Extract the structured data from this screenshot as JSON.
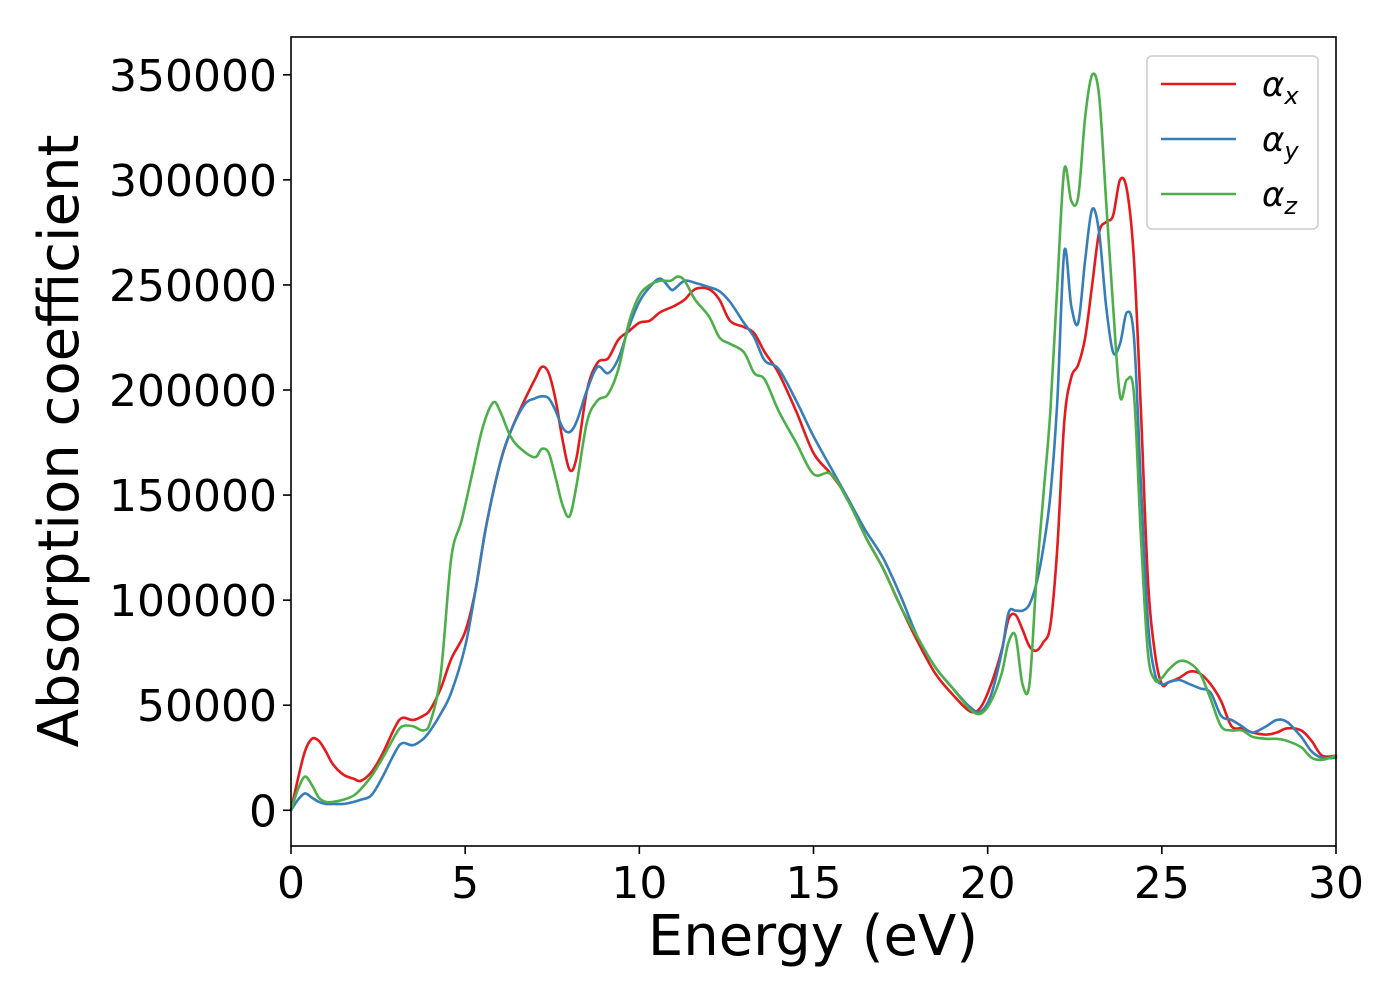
{
  "chart_data": {
    "type": "line",
    "xlabel": "Energy (eV)",
    "ylabel": "Absorption coefficient",
    "xlim": [
      0,
      30
    ],
    "ylim": [
      -17000,
      368000
    ],
    "xticks": [
      0,
      5,
      10,
      15,
      20,
      25,
      30
    ],
    "xtick_labels": [
      "0",
      "5",
      "10",
      "15",
      "20",
      "25",
      "30"
    ],
    "yticks": [
      0,
      50000,
      100000,
      150000,
      200000,
      250000,
      300000,
      350000
    ],
    "ytick_labels": [
      "0",
      "50000",
      "100000",
      "150000",
      "200000",
      "250000",
      "300000",
      "350000"
    ],
    "grid": false,
    "legend_position": "top-right",
    "series": [
      {
        "name": "α",
        "subscript": "x",
        "color": "#e41a1c",
        "x": [
          0,
          0.2,
          0.4,
          0.6,
          0.8,
          1.0,
          1.2,
          1.5,
          1.8,
          2.0,
          2.3,
          2.6,
          3.0,
          3.2,
          3.5,
          3.8,
          4.0,
          4.3,
          4.6,
          5.0,
          5.3,
          5.6,
          6.0,
          6.3,
          6.7,
          7.0,
          7.2,
          7.4,
          7.6,
          7.8,
          8.0,
          8.2,
          8.5,
          8.8,
          9.1,
          9.4,
          9.7,
          10.0,
          10.3,
          10.6,
          11.0,
          11.3,
          11.6,
          12.0,
          12.3,
          12.6,
          13.0,
          13.3,
          13.6,
          14.0,
          14.5,
          15.0,
          15.5,
          16.0,
          16.5,
          17.0,
          17.5,
          18.0,
          18.5,
          19.0,
          19.5,
          19.8,
          20.1,
          20.4,
          20.6,
          20.8,
          21.0,
          21.2,
          21.4,
          21.6,
          21.8,
          22.0,
          22.2,
          22.4,
          22.6,
          22.8,
          23.0,
          23.2,
          23.4,
          23.6,
          23.8,
          24.0,
          24.2,
          24.4,
          24.6,
          24.8,
          25.0,
          25.2,
          25.5,
          25.8,
          26.1,
          26.4,
          26.7,
          27.0,
          27.3,
          27.6,
          28.0,
          28.3,
          28.6,
          29.0,
          29.3,
          29.6,
          30.0
        ],
        "y": [
          0,
          15000,
          28000,
          34000,
          33000,
          28000,
          22000,
          17000,
          15000,
          14000,
          18000,
          26000,
          40000,
          44000,
          43000,
          45000,
          48000,
          58000,
          72000,
          85000,
          105000,
          135000,
          165000,
          180000,
          195000,
          205000,
          211000,
          208000,
          195000,
          176000,
          162000,
          168000,
          200000,
          213000,
          215000,
          224000,
          228000,
          232000,
          233000,
          237000,
          240000,
          243000,
          248000,
          248000,
          243000,
          233000,
          230000,
          227000,
          218000,
          208000,
          190000,
          170000,
          160000,
          148000,
          130000,
          115000,
          97000,
          80000,
          65000,
          55000,
          47000,
          49000,
          60000,
          76000,
          91000,
          93000,
          86000,
          78000,
          76000,
          80000,
          88000,
          125000,
          185000,
          206000,
          212000,
          225000,
          250000,
          275000,
          280000,
          283000,
          300000,
          295000,
          262000,
          190000,
          110000,
          75000,
          60000,
          61000,
          63000,
          66000,
          65000,
          60000,
          52000,
          40000,
          39000,
          37000,
          36000,
          37000,
          39000,
          38000,
          33000,
          26000,
          26000
        ],
        "x_label_unit": "eV"
      },
      {
        "name": "α",
        "subscript": "y",
        "color": "#377eb8",
        "x": [
          0,
          0.2,
          0.4,
          0.6,
          0.8,
          1.0,
          1.2,
          1.5,
          1.8,
          2.0,
          2.3,
          2.6,
          3.0,
          3.2,
          3.5,
          3.8,
          4.0,
          4.3,
          4.6,
          5.0,
          5.3,
          5.6,
          6.0,
          6.3,
          6.7,
          7.0,
          7.2,
          7.4,
          7.6,
          7.8,
          8.0,
          8.2,
          8.5,
          8.8,
          9.1,
          9.4,
          9.7,
          10.0,
          10.3,
          10.6,
          10.9,
          11.0,
          11.3,
          11.6,
          12.0,
          12.3,
          12.6,
          13.0,
          13.3,
          13.6,
          14.0,
          14.5,
          15.0,
          15.5,
          16.0,
          16.5,
          17.0,
          17.5,
          18.0,
          18.5,
          19.0,
          19.5,
          19.8,
          20.1,
          20.4,
          20.6,
          20.8,
          21.0,
          21.2,
          21.4,
          21.6,
          21.8,
          22.0,
          22.2,
          22.4,
          22.6,
          22.8,
          23.0,
          23.2,
          23.4,
          23.6,
          23.8,
          24.0,
          24.2,
          24.4,
          24.6,
          24.8,
          25.0,
          25.2,
          25.5,
          25.8,
          26.1,
          26.4,
          26.7,
          27.0,
          27.3,
          27.6,
          28.0,
          28.3,
          28.6,
          29.0,
          29.3,
          29.6,
          30.0
        ],
        "y": [
          0,
          5000,
          8000,
          6000,
          4000,
          3000,
          3000,
          3000,
          4000,
          5000,
          7000,
          15000,
          28000,
          32000,
          31000,
          34000,
          38000,
          46000,
          56000,
          78000,
          105000,
          135000,
          165000,
          180000,
          193000,
          196000,
          197000,
          196000,
          190000,
          182000,
          180000,
          185000,
          200000,
          211000,
          208000,
          215000,
          230000,
          242000,
          249000,
          253000,
          248000,
          248000,
          252000,
          251000,
          249000,
          247000,
          242000,
          232000,
          225000,
          214000,
          210000,
          195000,
          178000,
          163000,
          148000,
          133000,
          120000,
          102000,
          82000,
          68000,
          58000,
          49000,
          47000,
          55000,
          75000,
          94000,
          95000,
          95000,
          98000,
          108000,
          125000,
          150000,
          195000,
          266000,
          240000,
          232000,
          262000,
          286000,
          275000,
          240000,
          218000,
          222000,
          237000,
          225000,
          155000,
          90000,
          65000,
          60000,
          61000,
          62000,
          60000,
          58000,
          56000,
          45000,
          43000,
          40000,
          37000,
          40000,
          43000,
          42000,
          35000,
          28000,
          25000,
          25000
        ]
      },
      {
        "name": "α",
        "subscript": "z",
        "color": "#4daf4a",
        "x": [
          0,
          0.2,
          0.4,
          0.6,
          0.8,
          1.0,
          1.2,
          1.5,
          1.8,
          2.0,
          2.3,
          2.6,
          3.0,
          3.2,
          3.5,
          3.8,
          4.0,
          4.3,
          4.6,
          4.9,
          5.2,
          5.5,
          5.8,
          6.0,
          6.3,
          6.6,
          7.0,
          7.2,
          7.4,
          7.6,
          7.8,
          8.0,
          8.2,
          8.5,
          8.8,
          9.1,
          9.4,
          9.7,
          10.0,
          10.3,
          10.6,
          10.9,
          11.1,
          11.3,
          11.6,
          12.0,
          12.3,
          12.6,
          13.0,
          13.3,
          13.6,
          14.0,
          14.5,
          15.0,
          15.5,
          16.0,
          16.5,
          17.0,
          17.5,
          18.0,
          18.5,
          19.0,
          19.5,
          19.8,
          20.1,
          20.4,
          20.6,
          20.8,
          21.0,
          21.2,
          21.4,
          21.6,
          21.8,
          22.0,
          22.2,
          22.4,
          22.6,
          22.8,
          23.0,
          23.2,
          23.4,
          23.6,
          23.8,
          24.0,
          24.2,
          24.4,
          24.6,
          24.8,
          25.0,
          25.2,
          25.5,
          25.8,
          26.1,
          26.4,
          26.7,
          27.0,
          27.3,
          27.6,
          28.0,
          28.3,
          28.6,
          29.0,
          29.3,
          29.6,
          30.0
        ],
        "y": [
          0,
          10000,
          16000,
          12000,
          6000,
          4000,
          4000,
          5000,
          7000,
          10000,
          16000,
          24000,
          36000,
          40000,
          40000,
          38000,
          42000,
          65000,
          120000,
          138000,
          160000,
          182000,
          194000,
          190000,
          178000,
          172000,
          168000,
          172000,
          170000,
          158000,
          145000,
          140000,
          155000,
          185000,
          195000,
          198000,
          210000,
          232000,
          245000,
          250000,
          252000,
          252000,
          254000,
          252000,
          243000,
          235000,
          225000,
          222000,
          218000,
          208000,
          205000,
          190000,
          175000,
          160000,
          160000,
          147000,
          130000,
          115000,
          97000,
          82000,
          68000,
          58000,
          48000,
          46000,
          52000,
          65000,
          80000,
          83000,
          60000,
          60000,
          110000,
          150000,
          190000,
          250000,
          305000,
          290000,
          292000,
          330000,
          350000,
          340000,
          290000,
          240000,
          197000,
          205000,
          198000,
          130000,
          75000,
          62000,
          63000,
          67000,
          71000,
          70000,
          65000,
          53000,
          40000,
          38000,
          38000,
          35000,
          34000,
          34000,
          33000,
          30000,
          25000,
          24000,
          26000
        ]
      }
    ]
  }
}
